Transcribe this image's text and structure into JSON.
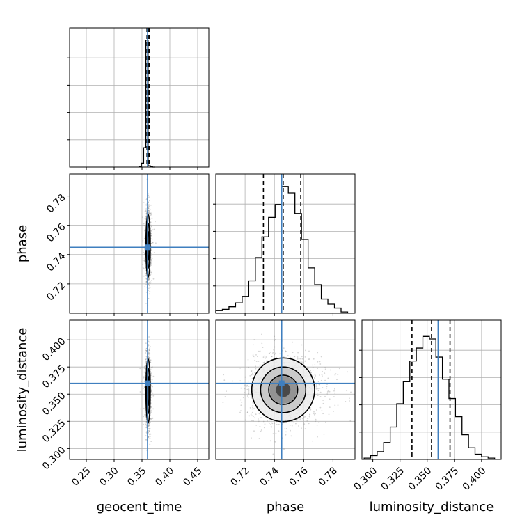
{
  "chart_data": {
    "type": "corner",
    "title": "",
    "colors": {
      "truth": "#3f7fbf",
      "hist": "#000000",
      "grid": "#b0b0b0",
      "quantile": "#000000"
    },
    "grid": true,
    "parameters": [
      {
        "name": "geocent_time",
        "range": [
          0.22,
          0.47
        ],
        "ticks": [
          0.25,
          0.3,
          0.35,
          0.4,
          0.45
        ],
        "tick_labels": [
          "0.25",
          "0.30",
          "0.35",
          "0.40",
          "0.45"
        ],
        "truth": 0.36,
        "quantiles": [
          0.359,
          0.361,
          0.363
        ]
      },
      {
        "name": "phase",
        "range": [
          0.7,
          0.795
        ],
        "ticks": [
          0.72,
          0.74,
          0.76,
          0.78
        ],
        "tick_labels": [
          "0.72",
          "0.74",
          "0.76",
          "0.78"
        ],
        "truth": 0.745,
        "quantiles": [
          0.7325,
          0.746,
          0.758
        ]
      },
      {
        "name": "luminosity_distance",
        "range": [
          0.29,
          0.418
        ],
        "ticks": [
          0.3,
          0.325,
          0.35,
          0.375,
          0.4
        ],
        "tick_labels": [
          "0.300",
          "0.325",
          "0.350",
          "0.375",
          "0.400"
        ],
        "truth": 0.36,
        "quantiles": [
          0.336,
          0.354,
          0.371
        ]
      }
    ],
    "histograms": [
      {
        "param": "geocent_time",
        "bin_edges": [
          0.345,
          0.349,
          0.353,
          0.357,
          0.361,
          0.365,
          0.369,
          0.373
        ],
        "counts": [
          0.005,
          0.03,
          0.15,
          0.98,
          0.01,
          0.002,
          0
        ]
      },
      {
        "param": "phase",
        "bin_edges": [
          0.7,
          0.7045,
          0.709,
          0.7135,
          0.718,
          0.7225,
          0.727,
          0.7315,
          0.736,
          0.7405,
          0.745,
          0.7495,
          0.754,
          0.7585,
          0.763,
          0.7675,
          0.772,
          0.7765,
          0.781,
          0.7855,
          0.79
        ],
        "counts": [
          0.02,
          0.03,
          0.05,
          0.08,
          0.13,
          0.25,
          0.43,
          0.59,
          0.74,
          0.84,
          0.98,
          0.93,
          0.77,
          0.57,
          0.35,
          0.22,
          0.11,
          0.07,
          0.04,
          0.01
        ]
      },
      {
        "param": "luminosity_distance",
        "bin_edges": [
          0.292,
          0.298,
          0.304,
          0.31,
          0.316,
          0.322,
          0.328,
          0.334,
          0.34,
          0.346,
          0.352,
          0.358,
          0.364,
          0.37,
          0.376,
          0.382,
          0.388,
          0.394,
          0.4,
          0.406,
          0.412
        ],
        "counts": [
          0.01,
          0.03,
          0.06,
          0.13,
          0.25,
          0.43,
          0.6,
          0.76,
          0.86,
          0.95,
          0.93,
          0.79,
          0.62,
          0.47,
          0.33,
          0.19,
          0.09,
          0.04,
          0.02,
          0.01
        ]
      }
    ],
    "scatter_2d": [
      {
        "x": "geocent_time",
        "y": "phase",
        "center": [
          0.361,
          0.746
        ],
        "spread": [
          0.002,
          0.011
        ]
      },
      {
        "x": "geocent_time",
        "y": "luminosity_distance",
        "center": [
          0.361,
          0.353
        ],
        "spread": [
          0.002,
          0.015
        ]
      },
      {
        "x": "phase",
        "y": "luminosity_distance",
        "center": [
          0.746,
          0.354
        ],
        "spread": [
          0.011,
          0.015
        ]
      }
    ]
  }
}
